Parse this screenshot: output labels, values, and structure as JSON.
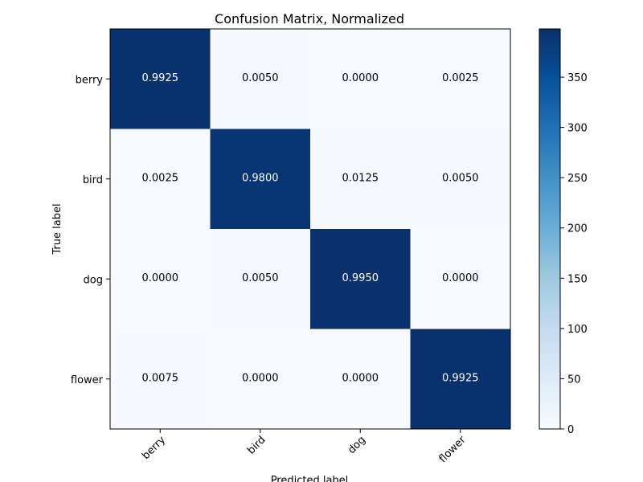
{
  "chart_data": {
    "type": "heatmap",
    "title": "Confusion Matrix, Normalized",
    "xlabel": "Predicted label",
    "ylabel": "True label",
    "x_categories": [
      "berry",
      "bird",
      "dog",
      "flower"
    ],
    "y_categories": [
      "berry",
      "bird",
      "dog",
      "flower"
    ],
    "values": [
      [
        0.9925,
        0.005,
        0.0,
        0.0025
      ],
      [
        0.0025,
        0.98,
        0.0125,
        0.005
      ],
      [
        0.0,
        0.005,
        0.995,
        0.0
      ],
      [
        0.0075,
        0.0,
        0.0,
        0.9925
      ]
    ],
    "cell_labels": [
      [
        "0.9925",
        "0.0050",
        "0.0000",
        "0.0025"
      ],
      [
        "0.0025",
        "0.9800",
        "0.0125",
        "0.0050"
      ],
      [
        "0.0000",
        "0.0050",
        "0.9950",
        "0.0000"
      ],
      [
        "0.0075",
        "0.0000",
        "0.0000",
        "0.9925"
      ]
    ],
    "colorbar": {
      "range": [
        0,
        398
      ],
      "ticks": [
        0,
        50,
        100,
        150,
        200,
        250,
        300,
        350
      ],
      "tick_labels": [
        "0",
        "50",
        "100",
        "150",
        "200",
        "250",
        "300",
        "350"
      ]
    },
    "colormap": "Blues",
    "colors": {
      "low": "#f7fbff",
      "high": "#08306b",
      "text_dark": "#000000",
      "text_light": "#ffffff"
    }
  }
}
